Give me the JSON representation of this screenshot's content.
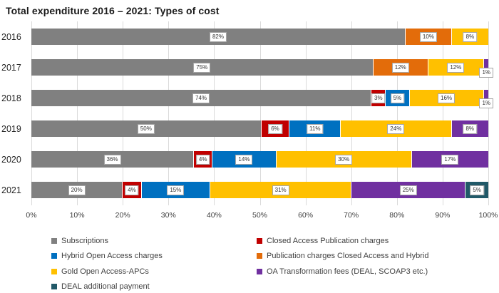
{
  "title": "Total expenditure 2016 – 2021: Types of cost",
  "chart_data": {
    "type": "bar",
    "orientation": "horizontal",
    "stacked": true,
    "title": "Total expenditure 2016 – 2021: Types of cost",
    "categories": [
      "2016",
      "2017",
      "2018",
      "2019",
      "2020",
      "2021"
    ],
    "series": [
      {
        "name": "Subscriptions",
        "color": "#808080",
        "values": [
          82,
          75,
          74,
          50,
          36,
          20
        ]
      },
      {
        "name": "Closed Access Publication charges",
        "color": "#C00000",
        "values": [
          0,
          0,
          3,
          6,
          4,
          4
        ]
      },
      {
        "name": "Hybrid Open Access charges",
        "color": "#0070C0",
        "values": [
          0,
          0,
          5,
          11,
          14,
          15
        ]
      },
      {
        "name": "Publication charges Closed Access and Hybrid",
        "color": "#E36C0A",
        "values": [
          10,
          12,
          0,
          0,
          0,
          0
        ]
      },
      {
        "name": "Gold Open Access-APCs",
        "color": "#FFC000",
        "values": [
          8,
          12,
          16,
          24,
          30,
          31
        ]
      },
      {
        "name": "OA Transformation fees (DEAL, SCOAP3 etc.)",
        "color": "#7030A0",
        "values": [
          0,
          1,
          1,
          8,
          17,
          25
        ]
      },
      {
        "name": "DEAL additional payment",
        "color": "#215968",
        "values": [
          0,
          0,
          0,
          0,
          0,
          5
        ]
      }
    ],
    "x_ticks": [
      "0%",
      "10%",
      "20%",
      "30%",
      "40%",
      "50%",
      "60%",
      "70%",
      "80%",
      "90%",
      "100%"
    ],
    "xlim": [
      0,
      100
    ],
    "data_label_suffix": "%",
    "grid": "vertical",
    "gridline_color": "#DADADA",
    "legend_position": "bottom",
    "legend_columns": [
      [
        0,
        2,
        4,
        6
      ],
      [
        1,
        3,
        5
      ]
    ],
    "outside_label_threshold": 1
  }
}
